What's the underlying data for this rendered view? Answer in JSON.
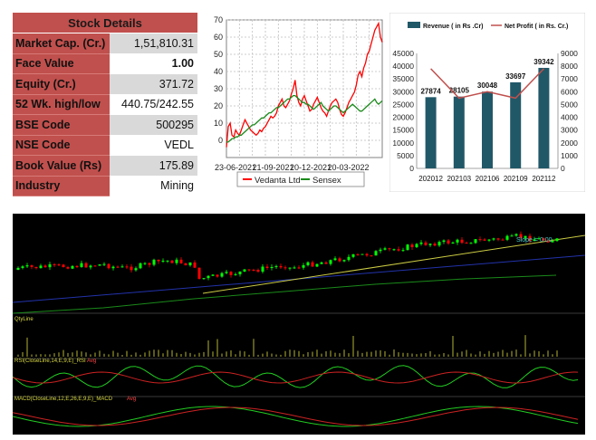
{
  "stock_details": {
    "title": "Stock Details",
    "rows": [
      {
        "label": "Market Cap. (Cr.)",
        "value": "1,51,810.31"
      },
      {
        "label": "Face Value",
        "value": "1.00"
      },
      {
        "label": "Equity (Cr.)",
        "value": "371.72"
      },
      {
        "label": "52 Wk. high/low",
        "value": "440.75/242.55"
      },
      {
        "label": "BSE Code",
        "value": "500295"
      },
      {
        "label": "NSE Code",
        "value": "VEDL"
      },
      {
        "label": "Book Value (Rs)",
        "value": "175.89"
      },
      {
        "label": "Industry",
        "value": "Mining"
      }
    ]
  },
  "chart_data": [
    {
      "type": "line",
      "x_tick_labels": [
        "23-06-2021",
        "21-09-2021",
        "20-12-2021",
        "20-03-2022"
      ],
      "ylim": [
        -10,
        70
      ],
      "y_ticks": [
        0,
        10,
        20,
        30,
        40,
        50,
        60,
        70
      ],
      "grid": true,
      "legend_placement": "bottom",
      "series": [
        {
          "name": "Vedanta Ltd",
          "color": "#ff0000",
          "values": [
            -4,
            8,
            10,
            3,
            2,
            6,
            4,
            3,
            6,
            9,
            12,
            10,
            8,
            6,
            5,
            4,
            3,
            4,
            6,
            5,
            7,
            8,
            10,
            12,
            14,
            13,
            14,
            16,
            20,
            22,
            24,
            20,
            19,
            21,
            23,
            27,
            30,
            35,
            26,
            22,
            20,
            24,
            26,
            23,
            20,
            17,
            18,
            21,
            23,
            25,
            22,
            19,
            17,
            16,
            14,
            17,
            20,
            22,
            23,
            24,
            22,
            18,
            15,
            14,
            16,
            19,
            22,
            24,
            26,
            28,
            32,
            38,
            40,
            37,
            42,
            45,
            50,
            52,
            56,
            60,
            64,
            66,
            68,
            60,
            57
          ]
        },
        {
          "name": "Sensex",
          "color": "#1a8a1a",
          "values": [
            -1,
            -1,
            0,
            1,
            1,
            2,
            2,
            3,
            3,
            4,
            5,
            6,
            7,
            8,
            9,
            9,
            10,
            11,
            12,
            13,
            13,
            14,
            15,
            16,
            16,
            17,
            18,
            19,
            19,
            20,
            21,
            22,
            23,
            24,
            24,
            25,
            26,
            26,
            25,
            24,
            23,
            22,
            22,
            21,
            21,
            20,
            19,
            18,
            19,
            20,
            21,
            22,
            20,
            19,
            18,
            17,
            18,
            19,
            20,
            20,
            19,
            18,
            17,
            16,
            17,
            18,
            19,
            20,
            21,
            20,
            19,
            18,
            17,
            17,
            18,
            19,
            20,
            21,
            22,
            23,
            24,
            22,
            21,
            22,
            23
          ]
        }
      ]
    },
    {
      "type": "bar",
      "categories": [
        "202012",
        "202103",
        "202106",
        "202109",
        "202112"
      ],
      "series": [
        {
          "name": "Revenue ( in Rs .Cr)",
          "color": "#215868",
          "axis": "left",
          "values": [
            27874,
            28105,
            30048,
            33697,
            39342
          ]
        },
        {
          "name": "Net Profit ( in Rs. Cr.)",
          "color": "#c0504d",
          "axis": "right",
          "type": "line",
          "values": [
            7800,
            5500,
            6000,
            5500,
            7800
          ]
        }
      ],
      "data_labels": [
        "27874",
        "28105",
        "30048",
        "33697",
        "39342"
      ],
      "ylim_left": [
        0,
        45000
      ],
      "y_ticks_left": [
        0,
        5000,
        10000,
        15000,
        20000,
        25000,
        30000,
        35000,
        40000,
        45000
      ],
      "ylim_right": [
        0,
        9000
      ],
      "y_ticks_right": [
        0,
        1000,
        2000,
        3000,
        4000,
        5000,
        6000,
        7000,
        8000,
        9000
      ],
      "legend_placement": "top"
    },
    {
      "type": "candlestick",
      "background": "#000000",
      "up_color": "#00ff00",
      "down_color": "#ff0000",
      "trend_annotation": "Slope = 0.00",
      "sub_panels": [
        {
          "label": "QtyLine"
        },
        {
          "label": "RSI(CloseLine,14,E,9,E)_RSI",
          "signal_label": "Avg"
        },
        {
          "label": "MACD(CloseLine,12,E,26,E,9,E)_MACD",
          "signal_label": "Avg"
        }
      ]
    }
  ]
}
